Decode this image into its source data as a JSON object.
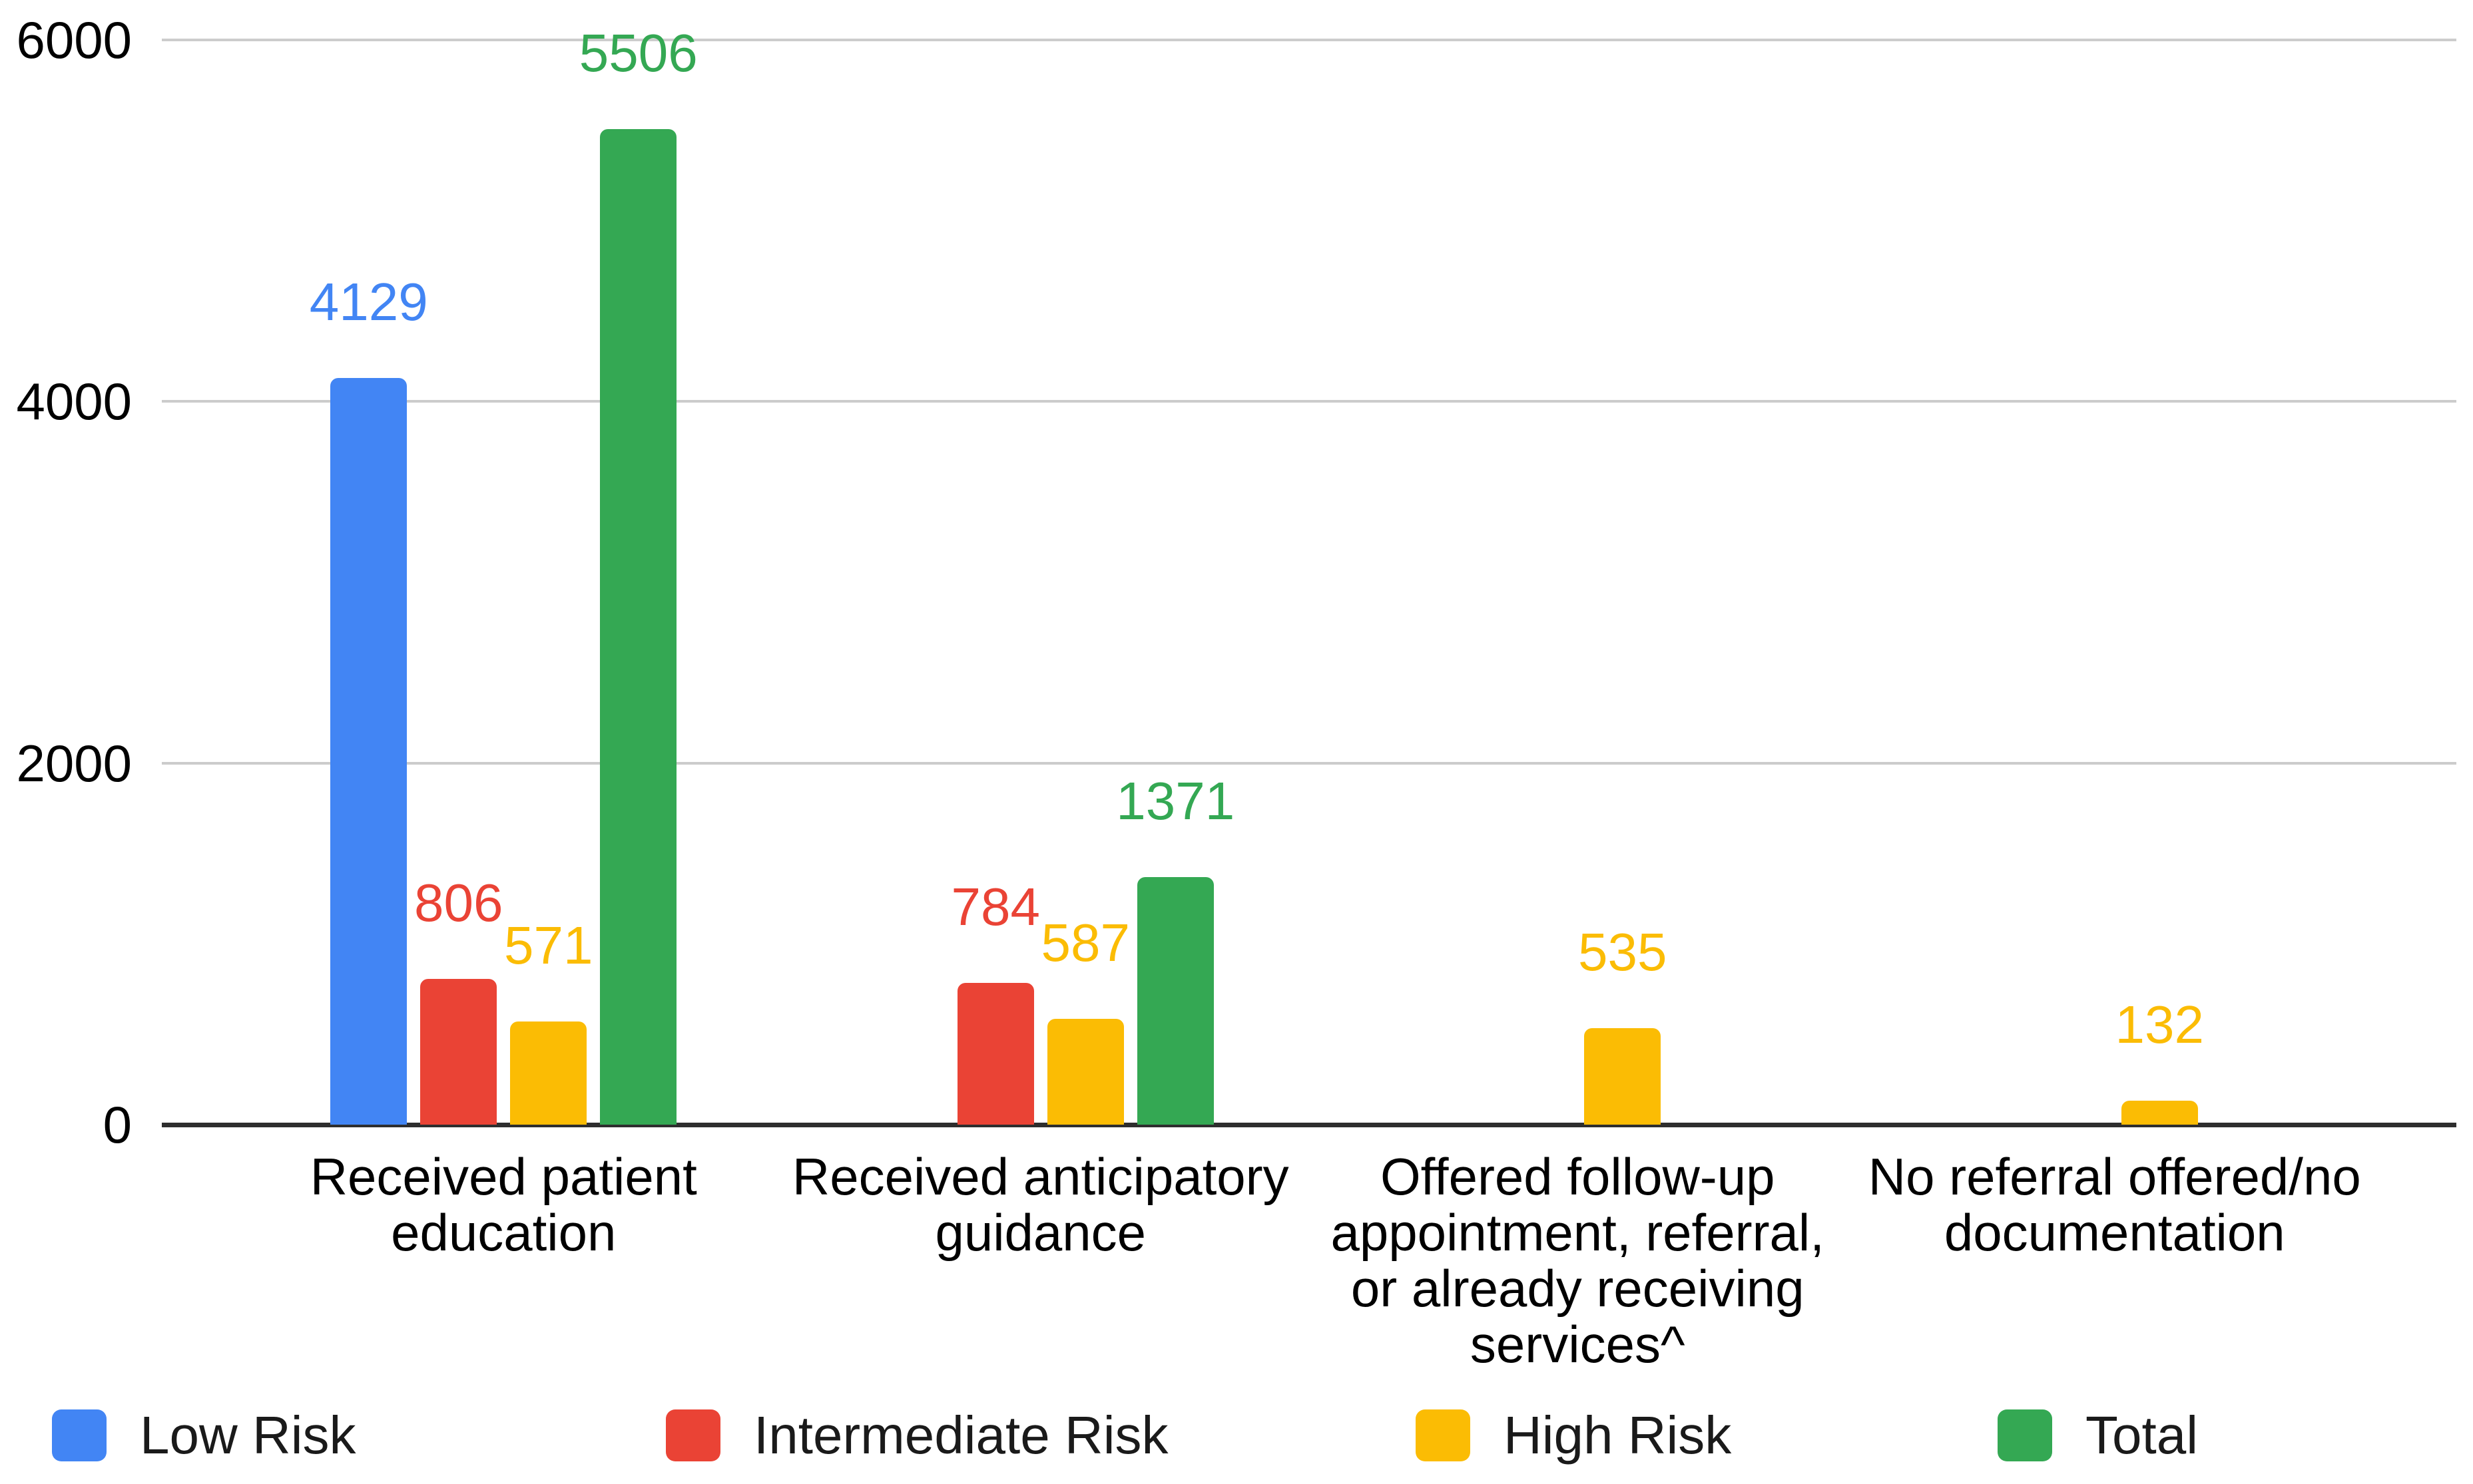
{
  "chart_data": {
    "type": "bar",
    "title": "",
    "categories": [
      "Received patient education",
      "Received anticipatory guidance",
      "Offered follow-up appointment, referral, or already receiving services^",
      "No referral offered/no documentation"
    ],
    "series": [
      {
        "name": "Low Risk",
        "color": "#4285F4",
        "values": [
          4129,
          null,
          null,
          null
        ]
      },
      {
        "name": "Intermediate Risk",
        "color": "#EA4335",
        "values": [
          806,
          784,
          null,
          null
        ]
      },
      {
        "name": "High Risk",
        "color": "#FBBC04",
        "values": [
          571,
          587,
          535,
          132
        ]
      },
      {
        "name": "Total",
        "color": "#34A853",
        "values": [
          5506,
          1371,
          null,
          null
        ]
      }
    ],
    "ylim": [
      0,
      6000
    ],
    "yticks": [
      0,
      2000,
      4000,
      6000
    ],
    "xlabel": "",
    "ylabel": "",
    "grid": "horizontal",
    "legend_position": "bottom",
    "data_labels": "value shown above each bar in its series color",
    "colors": {
      "background": "#ffffff",
      "gridline": "#cccccc",
      "axis_line": "#2e2e2e",
      "tick_text": "#000000",
      "category_text": "#000000",
      "legend_text": "#1a1a1a"
    },
    "legend": [
      {
        "label": "Low Risk",
        "color": "#4285F4"
      },
      {
        "label": "Intermediate Risk",
        "color": "#EA4335"
      },
      {
        "label": "High Risk",
        "color": "#FBBC04"
      },
      {
        "label": "Total",
        "color": "#34A853"
      }
    ]
  }
}
